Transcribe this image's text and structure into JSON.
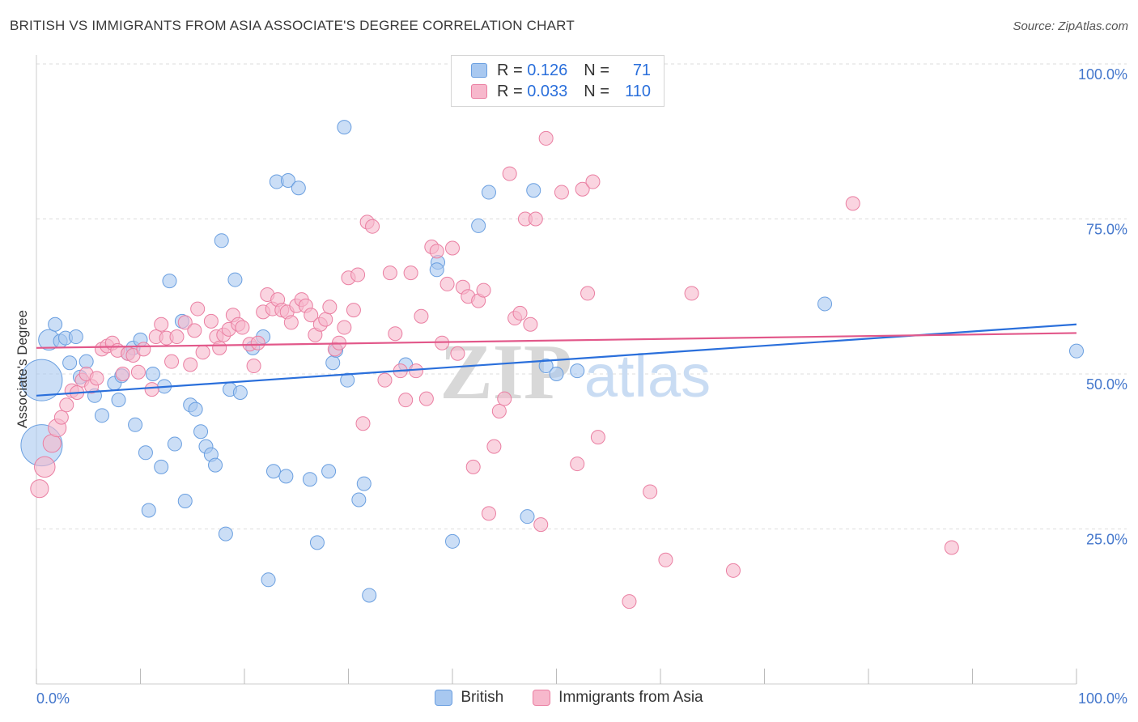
{
  "header": {
    "title": "BRITISH VS IMMIGRANTS FROM ASIA ASSOCIATE'S DEGREE CORRELATION CHART",
    "source": "Source: ZipAtlas.com"
  },
  "watermark": {
    "zip": "ZIP",
    "atlas": "atlas"
  },
  "legend": {
    "british": {
      "r_label": "R =",
      "r_value": "0.126",
      "n_label": "N =",
      "n_value": "71"
    },
    "asia": {
      "r_label": "R =",
      "r_value": "0.033",
      "n_label": "N =",
      "n_value": "110"
    }
  },
  "bottom_legend": {
    "british": "British",
    "asia": "Immigrants from Asia"
  },
  "colors": {
    "british_fill": "#a8c8f0",
    "british_stroke": "#6a9fe0",
    "british_line": "#2a6fdb",
    "asia_fill": "#f7b8cc",
    "asia_stroke": "#ea7fa2",
    "asia_line": "#e2588a",
    "tick_label": "#4477cc",
    "grid": "#dddddd"
  },
  "chart_data": {
    "type": "scatter",
    "title": "BRITISH VS IMMIGRANTS FROM ASIA ASSOCIATE'S DEGREE CORRELATION CHART",
    "xlabel": "",
    "ylabel": "Associate's Degree",
    "xlim": [
      0,
      100
    ],
    "ylim": [
      0,
      100
    ],
    "x_tick_labels": [
      "0.0%",
      "100.0%"
    ],
    "y_ticks": [
      25,
      50,
      75,
      100
    ],
    "y_tick_labels": [
      "25.0%",
      "50.0%",
      "75.0%",
      "100.0%"
    ],
    "grid": true,
    "legend_position": "top-center",
    "series": [
      {
        "name": "British",
        "R": 0.126,
        "N": 71,
        "trend": {
          "x": [
            0,
            100
          ],
          "y": [
            46.5,
            58.0
          ]
        },
        "points": [
          {
            "x": 0.5,
            "y": 49.0,
            "s": 3.0
          },
          {
            "x": 0.5,
            "y": 38.5,
            "s": 3.0
          },
          {
            "x": 1.2,
            "y": 55.5,
            "s": 1.5
          },
          {
            "x": 1.8,
            "y": 58.0,
            "s": 1
          },
          {
            "x": 2.3,
            "y": 55.3,
            "s": 1
          },
          {
            "x": 2.8,
            "y": 55.8,
            "s": 1
          },
          {
            "x": 3.2,
            "y": 51.8,
            "s": 1
          },
          {
            "x": 3.8,
            "y": 56.0,
            "s": 1
          },
          {
            "x": 4.2,
            "y": 49.5,
            "s": 1
          },
          {
            "x": 4.8,
            "y": 52.0,
            "s": 1
          },
          {
            "x": 5.6,
            "y": 46.5,
            "s": 1
          },
          {
            "x": 6.3,
            "y": 43.3,
            "s": 1
          },
          {
            "x": 7.5,
            "y": 48.5,
            "s": 1
          },
          {
            "x": 7.9,
            "y": 45.8,
            "s": 1
          },
          {
            "x": 8.2,
            "y": 49.7,
            "s": 1
          },
          {
            "x": 8.8,
            "y": 53.3,
            "s": 1
          },
          {
            "x": 9.3,
            "y": 54.2,
            "s": 1
          },
          {
            "x": 9.5,
            "y": 41.8,
            "s": 1
          },
          {
            "x": 10.0,
            "y": 55.5,
            "s": 1
          },
          {
            "x": 10.5,
            "y": 37.3,
            "s": 1
          },
          {
            "x": 10.8,
            "y": 28.0,
            "s": 1
          },
          {
            "x": 11.2,
            "y": 50.0,
            "s": 1
          },
          {
            "x": 12.0,
            "y": 35.0,
            "s": 1
          },
          {
            "x": 12.3,
            "y": 48.0,
            "s": 1
          },
          {
            "x": 12.8,
            "y": 65.0,
            "s": 1
          },
          {
            "x": 13.3,
            "y": 38.7,
            "s": 1
          },
          {
            "x": 14.0,
            "y": 58.5,
            "s": 1
          },
          {
            "x": 14.3,
            "y": 29.5,
            "s": 1
          },
          {
            "x": 14.8,
            "y": 45.0,
            "s": 1
          },
          {
            "x": 15.3,
            "y": 44.3,
            "s": 1
          },
          {
            "x": 15.8,
            "y": 40.7,
            "s": 1
          },
          {
            "x": 16.3,
            "y": 38.3,
            "s": 1
          },
          {
            "x": 16.8,
            "y": 37.0,
            "s": 1
          },
          {
            "x": 17.2,
            "y": 35.3,
            "s": 1
          },
          {
            "x": 17.8,
            "y": 71.5,
            "s": 1
          },
          {
            "x": 18.2,
            "y": 24.2,
            "s": 1
          },
          {
            "x": 18.6,
            "y": 47.5,
            "s": 1
          },
          {
            "x": 19.1,
            "y": 65.2,
            "s": 1
          },
          {
            "x": 19.6,
            "y": 47.0,
            "s": 1
          },
          {
            "x": 20.8,
            "y": 54.2,
            "s": 1
          },
          {
            "x": 21.8,
            "y": 56.0,
            "s": 1
          },
          {
            "x": 22.3,
            "y": 16.8,
            "s": 1
          },
          {
            "x": 22.8,
            "y": 34.3,
            "s": 1
          },
          {
            "x": 23.1,
            "y": 81.0,
            "s": 1
          },
          {
            "x": 24.0,
            "y": 33.5,
            "s": 1
          },
          {
            "x": 24.2,
            "y": 81.2,
            "s": 1
          },
          {
            "x": 25.2,
            "y": 80.0,
            "s": 1
          },
          {
            "x": 26.3,
            "y": 33.0,
            "s": 1
          },
          {
            "x": 27.0,
            "y": 22.8,
            "s": 1
          },
          {
            "x": 28.1,
            "y": 34.3,
            "s": 1
          },
          {
            "x": 28.5,
            "y": 51.8,
            "s": 1
          },
          {
            "x": 28.8,
            "y": 53.8,
            "s": 1
          },
          {
            "x": 29.6,
            "y": 89.8,
            "s": 1
          },
          {
            "x": 29.9,
            "y": 49.0,
            "s": 1
          },
          {
            "x": 31.0,
            "y": 29.7,
            "s": 1
          },
          {
            "x": 31.5,
            "y": 32.3,
            "s": 1
          },
          {
            "x": 32.0,
            "y": 14.3,
            "s": 1
          },
          {
            "x": 35.5,
            "y": 51.5,
            "s": 1
          },
          {
            "x": 38.6,
            "y": 68.0,
            "s": 1
          },
          {
            "x": 38.5,
            "y": 66.8,
            "s": 1
          },
          {
            "x": 40.0,
            "y": 23.0,
            "s": 1
          },
          {
            "x": 42.5,
            "y": 73.9,
            "s": 1
          },
          {
            "x": 43.5,
            "y": 79.3,
            "s": 1
          },
          {
            "x": 47.2,
            "y": 27.0,
            "s": 1
          },
          {
            "x": 47.8,
            "y": 79.6,
            "s": 1
          },
          {
            "x": 49.0,
            "y": 51.3,
            "s": 1
          },
          {
            "x": 50.0,
            "y": 50.0,
            "s": 1
          },
          {
            "x": 52.0,
            "y": 50.5,
            "s": 1
          },
          {
            "x": 75.8,
            "y": 61.3,
            "s": 1
          },
          {
            "x": 100.0,
            "y": 53.7,
            "s": 1
          }
        ]
      },
      {
        "name": "Immigrants from Asia",
        "R": 0.033,
        "N": 110,
        "trend": {
          "x": [
            0,
            100
          ],
          "y": [
            54.2,
            56.6
          ]
        },
        "points": [
          {
            "x": 0.3,
            "y": 31.5,
            "s": 1.3
          },
          {
            "x": 0.8,
            "y": 35.0,
            "s": 1.5
          },
          {
            "x": 1.5,
            "y": 38.8,
            "s": 1.3
          },
          {
            "x": 2.0,
            "y": 41.3,
            "s": 1.3
          },
          {
            "x": 2.4,
            "y": 43.0,
            "s": 1
          },
          {
            "x": 2.9,
            "y": 45.0,
            "s": 1
          },
          {
            "x": 3.4,
            "y": 47.3,
            "s": 1
          },
          {
            "x": 3.9,
            "y": 47.0,
            "s": 1
          },
          {
            "x": 4.4,
            "y": 49.0,
            "s": 1
          },
          {
            "x": 4.8,
            "y": 50.0,
            "s": 1
          },
          {
            "x": 5.3,
            "y": 48.0,
            "s": 1
          },
          {
            "x": 5.8,
            "y": 49.3,
            "s": 1
          },
          {
            "x": 6.3,
            "y": 54.0,
            "s": 1
          },
          {
            "x": 6.8,
            "y": 54.5,
            "s": 1
          },
          {
            "x": 7.3,
            "y": 55.0,
            "s": 1
          },
          {
            "x": 7.8,
            "y": 53.8,
            "s": 1
          },
          {
            "x": 8.3,
            "y": 50.0,
            "s": 1
          },
          {
            "x": 8.8,
            "y": 53.3,
            "s": 1
          },
          {
            "x": 9.3,
            "y": 53.0,
            "s": 1
          },
          {
            "x": 9.8,
            "y": 50.3,
            "s": 1
          },
          {
            "x": 10.3,
            "y": 54.0,
            "s": 1
          },
          {
            "x": 11.1,
            "y": 47.5,
            "s": 1
          },
          {
            "x": 11.5,
            "y": 56.0,
            "s": 1
          },
          {
            "x": 12.0,
            "y": 58.0,
            "s": 1
          },
          {
            "x": 12.5,
            "y": 55.8,
            "s": 1
          },
          {
            "x": 13.0,
            "y": 52.0,
            "s": 1
          },
          {
            "x": 13.5,
            "y": 56.0,
            "s": 1
          },
          {
            "x": 14.3,
            "y": 58.3,
            "s": 1
          },
          {
            "x": 14.8,
            "y": 51.5,
            "s": 1
          },
          {
            "x": 15.2,
            "y": 57.0,
            "s": 1
          },
          {
            "x": 15.5,
            "y": 60.5,
            "s": 1
          },
          {
            "x": 16.0,
            "y": 53.5,
            "s": 1
          },
          {
            "x": 16.8,
            "y": 58.5,
            "s": 1
          },
          {
            "x": 17.3,
            "y": 56.0,
            "s": 1
          },
          {
            "x": 17.6,
            "y": 54.2,
            "s": 1
          },
          {
            "x": 18.0,
            "y": 56.3,
            "s": 1
          },
          {
            "x": 18.5,
            "y": 57.2,
            "s": 1
          },
          {
            "x": 18.9,
            "y": 59.5,
            "s": 1
          },
          {
            "x": 19.4,
            "y": 58.0,
            "s": 1
          },
          {
            "x": 19.8,
            "y": 57.5,
            "s": 1
          },
          {
            "x": 20.5,
            "y": 54.8,
            "s": 1
          },
          {
            "x": 20.9,
            "y": 51.3,
            "s": 1
          },
          {
            "x": 21.3,
            "y": 55.0,
            "s": 1
          },
          {
            "x": 21.8,
            "y": 60.0,
            "s": 1
          },
          {
            "x": 22.2,
            "y": 62.8,
            "s": 1
          },
          {
            "x": 22.7,
            "y": 60.5,
            "s": 1
          },
          {
            "x": 23.2,
            "y": 62.0,
            "s": 1
          },
          {
            "x": 23.6,
            "y": 60.3,
            "s": 1
          },
          {
            "x": 24.1,
            "y": 60.0,
            "s": 1
          },
          {
            "x": 24.5,
            "y": 58.3,
            "s": 1
          },
          {
            "x": 25.0,
            "y": 61.0,
            "s": 1
          },
          {
            "x": 25.5,
            "y": 62.0,
            "s": 1
          },
          {
            "x": 25.9,
            "y": 61.0,
            "s": 1
          },
          {
            "x": 26.4,
            "y": 59.5,
            "s": 1
          },
          {
            "x": 26.8,
            "y": 56.3,
            "s": 1
          },
          {
            "x": 27.3,
            "y": 58.0,
            "s": 1
          },
          {
            "x": 27.8,
            "y": 58.8,
            "s": 1
          },
          {
            "x": 28.2,
            "y": 60.8,
            "s": 1
          },
          {
            "x": 28.7,
            "y": 54.0,
            "s": 1
          },
          {
            "x": 29.1,
            "y": 55.0,
            "s": 1
          },
          {
            "x": 29.6,
            "y": 57.5,
            "s": 1
          },
          {
            "x": 30.0,
            "y": 65.5,
            "s": 1
          },
          {
            "x": 30.5,
            "y": 60.3,
            "s": 1
          },
          {
            "x": 30.9,
            "y": 66.0,
            "s": 1
          },
          {
            "x": 31.4,
            "y": 42.0,
            "s": 1
          },
          {
            "x": 31.8,
            "y": 74.5,
            "s": 1
          },
          {
            "x": 32.3,
            "y": 73.8,
            "s": 1
          },
          {
            "x": 33.5,
            "y": 49.0,
            "s": 1
          },
          {
            "x": 34.0,
            "y": 66.3,
            "s": 1
          },
          {
            "x": 34.5,
            "y": 56.5,
            "s": 1
          },
          {
            "x": 35.0,
            "y": 50.5,
            "s": 1
          },
          {
            "x": 35.5,
            "y": 45.8,
            "s": 1
          },
          {
            "x": 36.0,
            "y": 66.3,
            "s": 1
          },
          {
            "x": 36.5,
            "y": 50.5,
            "s": 1
          },
          {
            "x": 37.0,
            "y": 59.3,
            "s": 1
          },
          {
            "x": 37.5,
            "y": 46.0,
            "s": 1
          },
          {
            "x": 38.0,
            "y": 70.5,
            "s": 1
          },
          {
            "x": 38.5,
            "y": 69.8,
            "s": 1
          },
          {
            "x": 39.0,
            "y": 55.0,
            "s": 1
          },
          {
            "x": 39.5,
            "y": 64.5,
            "s": 1
          },
          {
            "x": 40.0,
            "y": 70.3,
            "s": 1
          },
          {
            "x": 40.5,
            "y": 53.3,
            "s": 1
          },
          {
            "x": 41.0,
            "y": 64.0,
            "s": 1
          },
          {
            "x": 41.5,
            "y": 62.5,
            "s": 1
          },
          {
            "x": 42.0,
            "y": 35.0,
            "s": 1
          },
          {
            "x": 42.5,
            "y": 61.8,
            "s": 1
          },
          {
            "x": 43.0,
            "y": 63.5,
            "s": 1
          },
          {
            "x": 43.5,
            "y": 27.5,
            "s": 1
          },
          {
            "x": 44.0,
            "y": 38.3,
            "s": 1
          },
          {
            "x": 44.5,
            "y": 44.0,
            "s": 1
          },
          {
            "x": 45.0,
            "y": 46.0,
            "s": 1
          },
          {
            "x": 45.5,
            "y": 82.3,
            "s": 1
          },
          {
            "x": 46.0,
            "y": 59.0,
            "s": 1
          },
          {
            "x": 46.5,
            "y": 59.8,
            "s": 1
          },
          {
            "x": 47.0,
            "y": 75.0,
            "s": 1
          },
          {
            "x": 47.5,
            "y": 58.0,
            "s": 1
          },
          {
            "x": 48.0,
            "y": 75.0,
            "s": 1
          },
          {
            "x": 48.5,
            "y": 25.7,
            "s": 1
          },
          {
            "x": 49.0,
            "y": 88.0,
            "s": 1
          },
          {
            "x": 50.5,
            "y": 79.3,
            "s": 1
          },
          {
            "x": 52.0,
            "y": 35.5,
            "s": 1
          },
          {
            "x": 52.5,
            "y": 79.8,
            "s": 1
          },
          {
            "x": 53.0,
            "y": 63.0,
            "s": 1
          },
          {
            "x": 53.5,
            "y": 81.0,
            "s": 1
          },
          {
            "x": 54.0,
            "y": 39.8,
            "s": 1
          },
          {
            "x": 57.0,
            "y": 13.3,
            "s": 1
          },
          {
            "x": 59.0,
            "y": 31.0,
            "s": 1
          },
          {
            "x": 60.5,
            "y": 20.0,
            "s": 1
          },
          {
            "x": 63.0,
            "y": 63.0,
            "s": 1
          },
          {
            "x": 67.0,
            "y": 18.3,
            "s": 1
          },
          {
            "x": 78.5,
            "y": 77.5,
            "s": 1
          },
          {
            "x": 88.0,
            "y": 22.0,
            "s": 1
          }
        ]
      }
    ]
  }
}
